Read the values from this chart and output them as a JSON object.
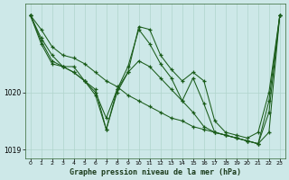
{
  "title": "Graphe pression niveau de la mer (hPa)",
  "background_color": "#cde8e8",
  "grid_color": "#b0d4cc",
  "line_color": "#1a5c1a",
  "marker": "+",
  "xlim": [
    -0.5,
    23.5
  ],
  "ylim": [
    1018.85,
    1021.55
  ],
  "yticks": [
    1019,
    1020
  ],
  "ytick_labels": [
    "1019",
    "1020"
  ],
  "xticks": [
    0,
    1,
    2,
    3,
    4,
    5,
    6,
    7,
    8,
    9,
    10,
    11,
    12,
    13,
    14,
    15,
    16,
    17,
    18,
    19,
    20,
    21,
    22,
    23
  ],
  "series": [
    [
      1021.35,
      1021.1,
      1020.8,
      1020.65,
      1020.6,
      1020.5,
      1020.35,
      1020.2,
      1020.1,
      1019.95,
      1019.85,
      1019.75,
      1019.65,
      1019.55,
      1019.5,
      1019.4,
      1019.35,
      1019.3,
      1019.25,
      1019.2,
      1019.15,
      1019.1,
      1019.3,
      1021.35
    ],
    [
      1021.35,
      1020.95,
      1020.65,
      1020.45,
      1020.35,
      1020.2,
      1020.0,
      1019.55,
      1020.05,
      1020.35,
      1020.55,
      1020.45,
      1020.25,
      1020.05,
      1019.85,
      1019.65,
      1019.4,
      1019.3,
      1019.25,
      1019.2,
      1019.15,
      1019.1,
      1019.85,
      1021.35
    ],
    [
      1021.35,
      1020.9,
      1020.55,
      1020.45,
      1020.45,
      1020.2,
      1020.05,
      1019.35,
      1020.05,
      1020.45,
      1021.1,
      1020.85,
      1020.5,
      1020.25,
      1019.85,
      1020.25,
      1019.8,
      1019.3,
      1019.25,
      1019.2,
      1019.15,
      1019.1,
      1019.65,
      1021.35
    ],
    [
      1021.35,
      1020.85,
      1020.5,
      1020.45,
      1020.35,
      1020.2,
      1019.95,
      1019.35,
      1020.0,
      1020.35,
      1021.15,
      1021.1,
      1020.65,
      1020.4,
      1020.2,
      1020.35,
      1020.2,
      1019.5,
      1019.3,
      1019.25,
      1019.2,
      1019.3,
      1020.0,
      1021.35
    ]
  ]
}
